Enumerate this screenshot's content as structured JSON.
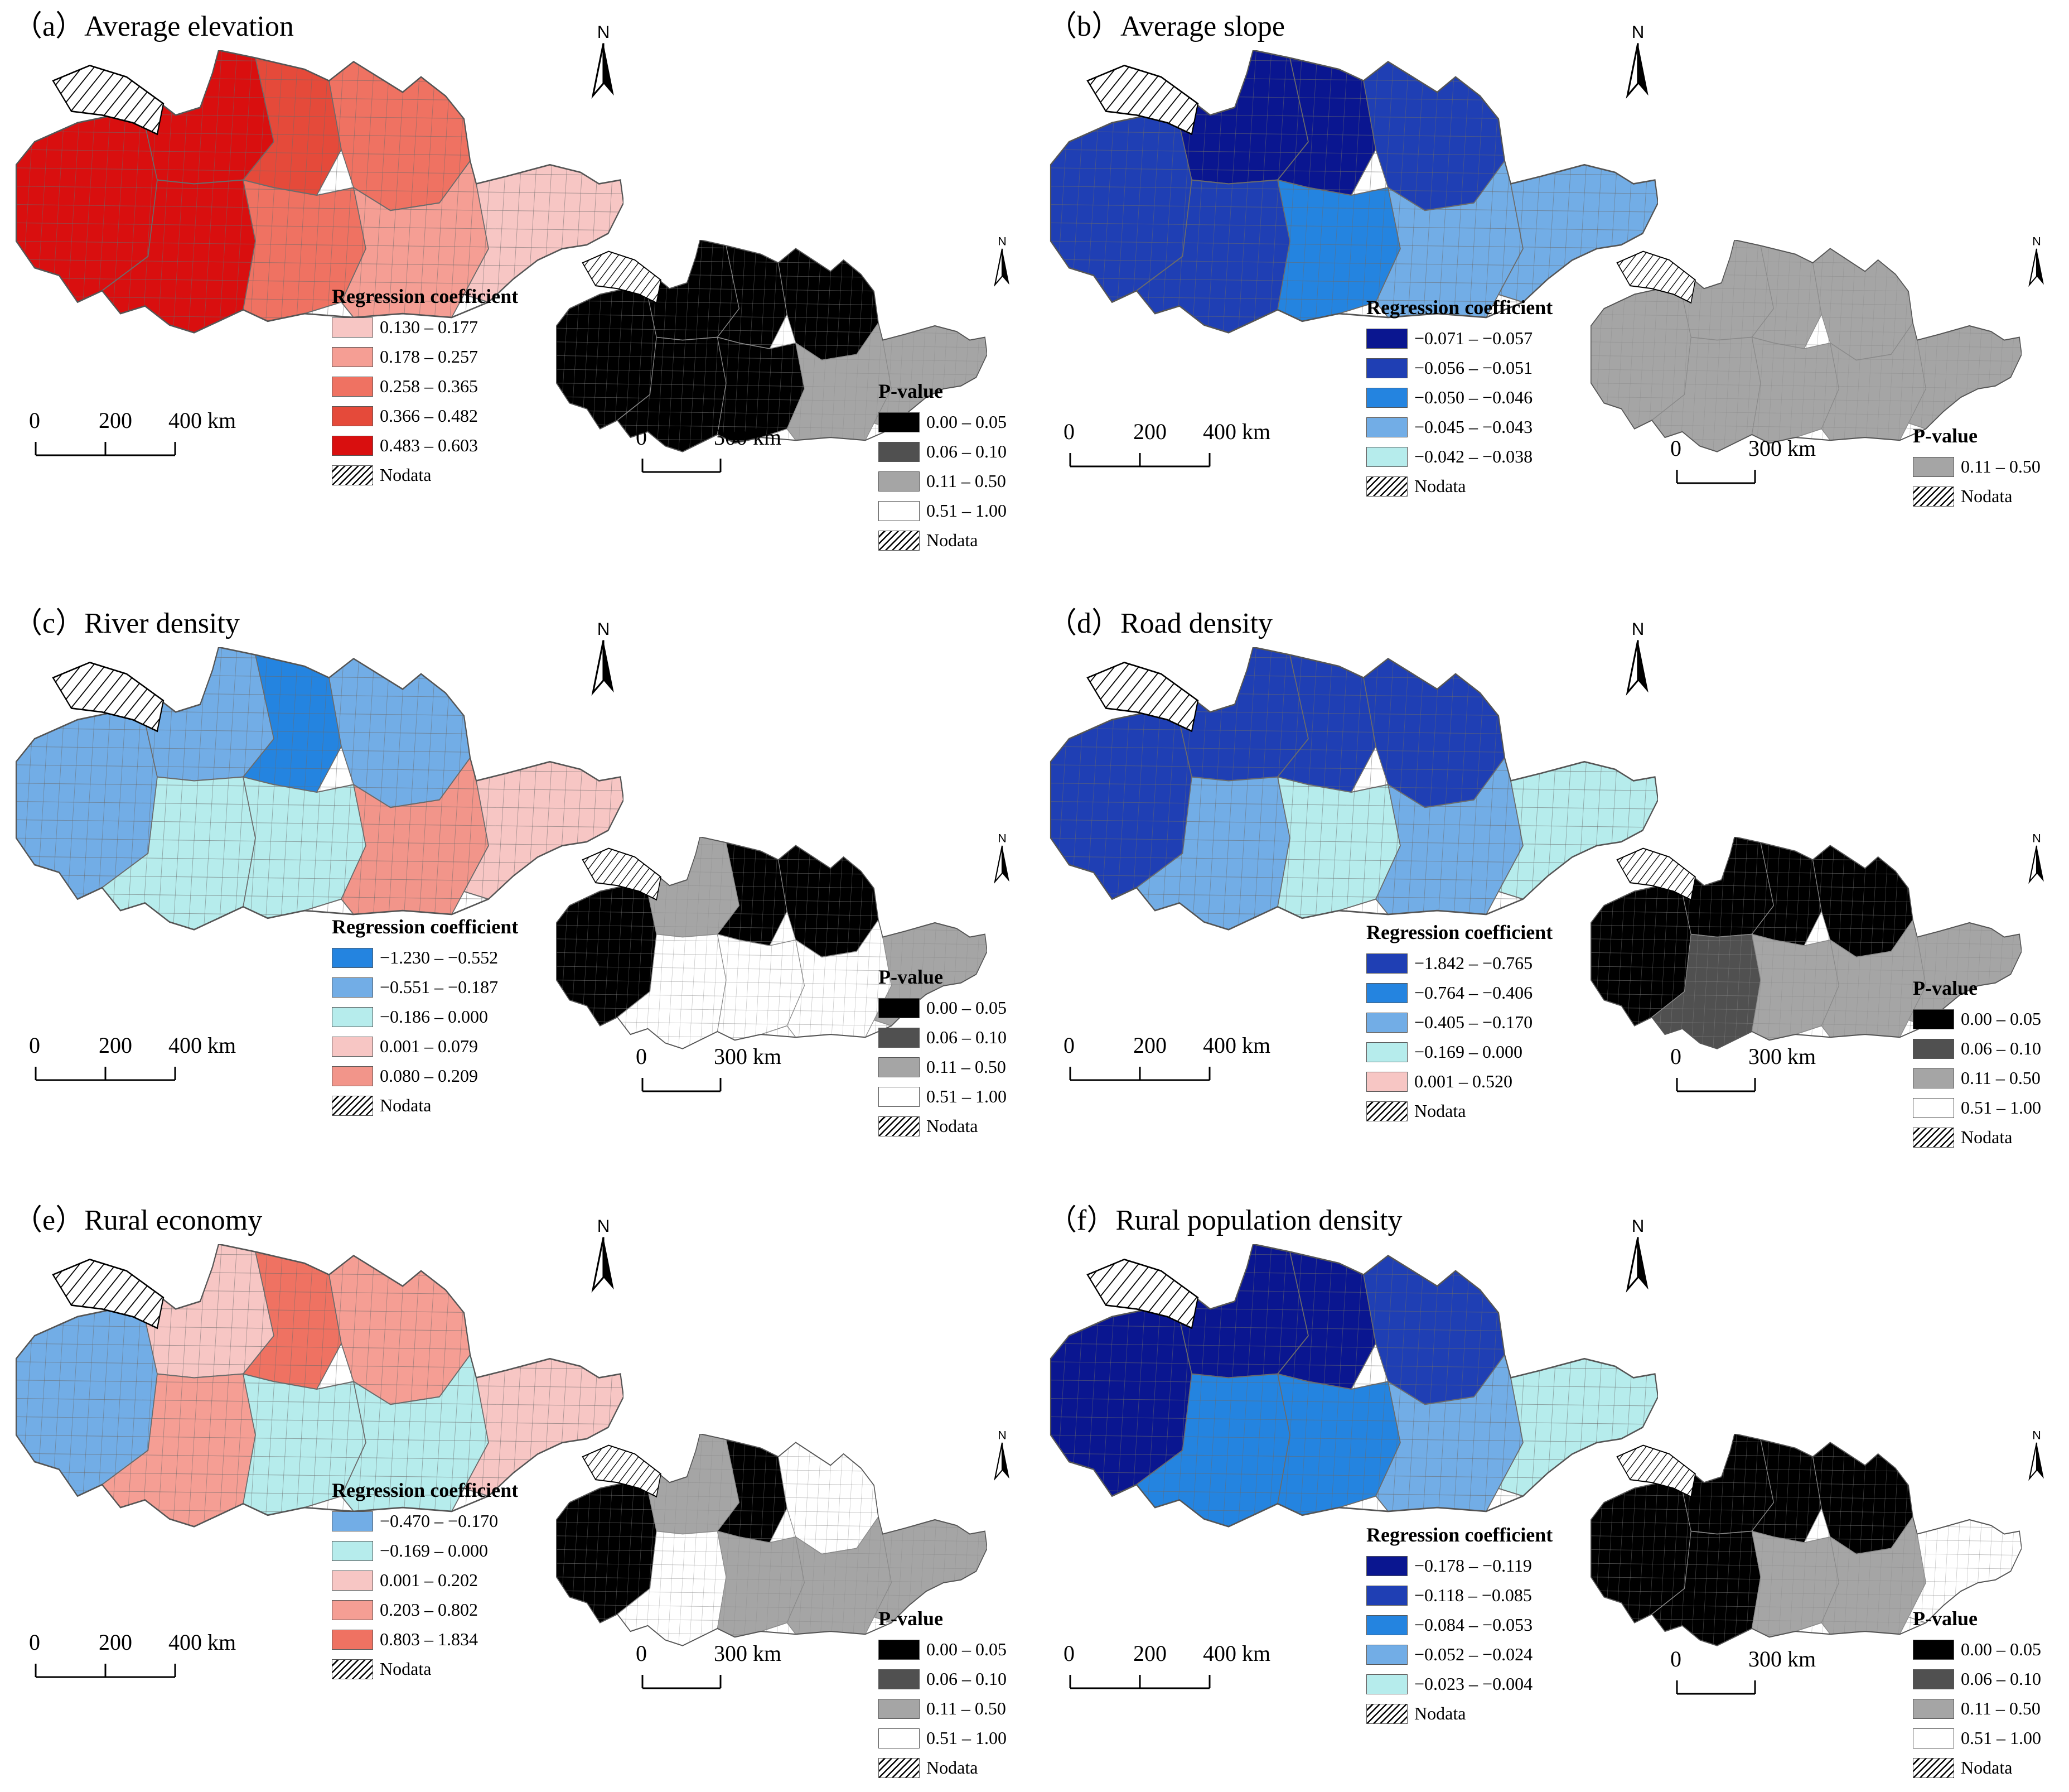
{
  "panels": [
    {
      "title": "（a）Average elevation",
      "legend_title": "Regression coefficient",
      "classes": [
        {
          "label": "0.130 – 0.177",
          "color": "#f7c6c4"
        },
        {
          "label": "0.178 – 0.257",
          "color": "#f59e94"
        },
        {
          "label": "0.258 – 0.365",
          "color": "#ef7262"
        },
        {
          "label": "0.366 – 0.482",
          "color": "#e54a3a"
        },
        {
          "label": "0.483 – 0.603",
          "color": "#d90f0f"
        }
      ],
      "nodata": "Nodata",
      "scale": [
        "0",
        "200",
        "400 km"
      ],
      "pvalue_title": "P-value",
      "pclasses": [
        {
          "label": "0.00 – 0.05",
          "color": "#000000"
        },
        {
          "label": "0.06 – 0.10",
          "color": "#505050"
        },
        {
          "label": "0.11 – 0.50",
          "color": "#a5a5a5"
        },
        {
          "label": "0.51 – 1.00",
          "color": "#ffffff"
        }
      ],
      "pscale": [
        "0",
        "300 km"
      ]
    },
    {
      "title": "（b）Average slope",
      "legend_title": "Regression coefficient",
      "classes": [
        {
          "label": "−0.071 – −0.057",
          "color": "#0a1690"
        },
        {
          "label": "−0.056 – −0.051",
          "color": "#1f3fb4"
        },
        {
          "label": "−0.050 – −0.046",
          "color": "#2484e0"
        },
        {
          "label": "−0.045 – −0.043",
          "color": "#72ade6"
        },
        {
          "label": "−0.042 – −0.038",
          "color": "#b6ecec"
        }
      ],
      "nodata": "Nodata",
      "scale": [
        "0",
        "200",
        "400 km"
      ],
      "pvalue_title": "P-value",
      "pclasses": [
        {
          "label": "0.11 – 0.50",
          "color": "#a5a5a5"
        }
      ],
      "pscale": [
        "0",
        "300 km"
      ]
    },
    {
      "title": "（c）River density",
      "legend_title": "Regression coefficient",
      "classes": [
        {
          "label": "−1.230 – −0.552",
          "color": "#2484e0"
        },
        {
          "label": "−0.551 – −0.187",
          "color": "#72ade6"
        },
        {
          "label": "−0.186 – 0.000",
          "color": "#b6ecec"
        },
        {
          "label": "0.001 – 0.079",
          "color": "#f7c6c4"
        },
        {
          "label": "0.080 – 0.209",
          "color": "#f2958a"
        }
      ],
      "nodata": "Nodata",
      "scale": [
        "0",
        "200",
        "400 km"
      ],
      "pvalue_title": "P-value",
      "pclasses": [
        {
          "label": "0.00 – 0.05",
          "color": "#000000"
        },
        {
          "label": "0.06 – 0.10",
          "color": "#505050"
        },
        {
          "label": "0.11 – 0.50",
          "color": "#a5a5a5"
        },
        {
          "label": "0.51 – 1.00",
          "color": "#ffffff"
        }
      ],
      "pscale": [
        "0",
        "300 km"
      ]
    },
    {
      "title": "（d）Road density",
      "legend_title": "Regression coefficient",
      "classes": [
        {
          "label": "−1.842 – −0.765",
          "color": "#1f3fb4"
        },
        {
          "label": "−0.764 – −0.406",
          "color": "#2484e0"
        },
        {
          "label": "−0.405 – −0.170",
          "color": "#72ade6"
        },
        {
          "label": "−0.169 – 0.000",
          "color": "#b6ecec"
        },
        {
          "label": "0.001 – 0.520",
          "color": "#f7c6c4"
        }
      ],
      "nodata": "Nodata",
      "scale": [
        "0",
        "200",
        "400 km"
      ],
      "pvalue_title": "P-value",
      "pclasses": [
        {
          "label": "0.00 – 0.05",
          "color": "#000000"
        },
        {
          "label": "0.06 – 0.10",
          "color": "#505050"
        },
        {
          "label": "0.11 – 0.50",
          "color": "#a5a5a5"
        },
        {
          "label": "0.51 – 1.00",
          "color": "#ffffff"
        }
      ],
      "pscale": [
        "0",
        "300 km"
      ]
    },
    {
      "title": "（e）Rural economy",
      "legend_title": "Regression coefficient",
      "classes": [
        {
          "label": "−0.470 – −0.170",
          "color": "#72ade6"
        },
        {
          "label": "−0.169 – 0.000",
          "color": "#b6ecec"
        },
        {
          "label": "0.001 – 0.202",
          "color": "#f7c6c4"
        },
        {
          "label": "0.203 – 0.802",
          "color": "#f59e94"
        },
        {
          "label": "0.803 – 1.834",
          "color": "#ef7262"
        }
      ],
      "nodata": "Nodata",
      "scale": [
        "0",
        "200",
        "400 km"
      ],
      "pvalue_title": "P-value",
      "pclasses": [
        {
          "label": "0.00 – 0.05",
          "color": "#000000"
        },
        {
          "label": "0.06 – 0.10",
          "color": "#505050"
        },
        {
          "label": "0.11 – 0.50",
          "color": "#a5a5a5"
        },
        {
          "label": "0.51 – 1.00",
          "color": "#ffffff"
        }
      ],
      "pscale": [
        "0",
        "300 km"
      ]
    },
    {
      "title": "（f）Rural population density",
      "legend_title": "Regression coefficient",
      "classes": [
        {
          "label": "−0.178 – −0.119",
          "color": "#0a1690"
        },
        {
          "label": "−0.118 – −0.085",
          "color": "#1f3fb4"
        },
        {
          "label": "−0.084 – −0.053",
          "color": "#2484e0"
        },
        {
          "label": "−0.052 – −0.024",
          "color": "#72ade6"
        },
        {
          "label": "−0.023 – −0.004",
          "color": "#b6ecec"
        }
      ],
      "nodata": "Nodata",
      "scale": [
        "0",
        "200",
        "400 km"
      ],
      "pvalue_title": "P-value",
      "pclasses": [
        {
          "label": "0.00 – 0.05",
          "color": "#000000"
        },
        {
          "label": "0.06 – 0.10",
          "color": "#505050"
        },
        {
          "label": "0.11 – 0.50",
          "color": "#a5a5a5"
        },
        {
          "label": "0.51 – 1.00",
          "color": "#ffffff"
        }
      ],
      "pscale": [
        "0",
        "300 km"
      ]
    }
  ],
  "north_label": "N"
}
